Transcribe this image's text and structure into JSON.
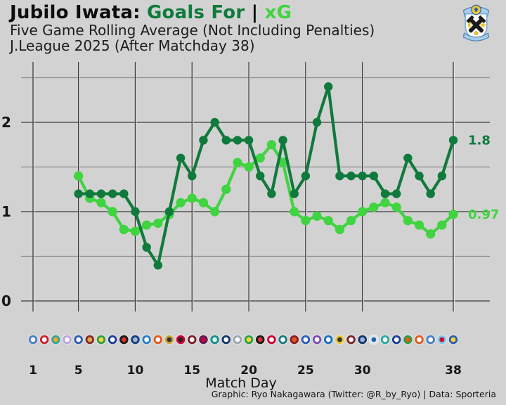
{
  "header": {
    "title_team": "Jubilo Iwata:",
    "title_goals": "Goals For",
    "title_sep": "|",
    "title_xg": "xG",
    "subtitle1": "Five Game Rolling Average (Not Including Penalties)",
    "subtitle2": "J.League 2025 (After Matchday 38)"
  },
  "footer": {
    "axis_title": "Match Day",
    "caption": "Graphic: Ryo Nakagawara (Twitter: @R_by_Ryo) | Data: Sporteria"
  },
  "colors": {
    "background": "#d2d2d2",
    "goals_green": "#0f7a3c",
    "xg_green": "#3fd440",
    "grid_dark": "#3c3c3c",
    "grid_light": "#8c8c8c",
    "text": "#141414"
  },
  "chart_data": {
    "type": "line",
    "title": "Jubilo Iwata: Goals For | xG (Five Game Rolling Average, Not Including Penalties)",
    "xlabel": "Match Day",
    "ylabel": "",
    "xlim": [
      1,
      38
    ],
    "ylim": [
      -0.15,
      2.65
    ],
    "grid": true,
    "x_ticks": [
      1,
      5,
      10,
      15,
      20,
      25,
      30,
      38
    ],
    "y_ticks": [
      0,
      1,
      2
    ],
    "h_gridlines": [
      0,
      0.5,
      1,
      1.5,
      2,
      2.5
    ],
    "x": [
      5,
      6,
      7,
      8,
      9,
      10,
      11,
      12,
      13,
      14,
      15,
      16,
      17,
      18,
      19,
      20,
      21,
      22,
      23,
      24,
      25,
      26,
      27,
      28,
      29,
      30,
      31,
      32,
      33,
      34,
      35,
      36,
      37,
      38
    ],
    "series": [
      {
        "name": "xG",
        "color": "#3fd440",
        "end_label": "0.97",
        "values": [
          1.4,
          1.15,
          1.1,
          1.0,
          0.8,
          0.78,
          0.85,
          0.87,
          0.97,
          1.1,
          1.15,
          1.1,
          1.0,
          1.25,
          1.55,
          1.5,
          1.6,
          1.75,
          1.55,
          1.0,
          0.9,
          0.95,
          0.9,
          0.8,
          0.9,
          1.0,
          1.05,
          1.1,
          1.05,
          0.9,
          0.85,
          0.75,
          0.85,
          0.97
        ]
      },
      {
        "name": "Goals For",
        "color": "#0f7a3c",
        "end_label": "1.8",
        "values": [
          1.2,
          1.2,
          1.2,
          1.2,
          1.2,
          1.0,
          0.6,
          0.4,
          1.0,
          1.6,
          1.4,
          1.8,
          2.0,
          1.8,
          1.8,
          1.8,
          1.4,
          1.2,
          1.8,
          1.2,
          1.4,
          2.0,
          2.4,
          1.4,
          1.4,
          1.4,
          1.4,
          1.2,
          1.2,
          1.6,
          1.4,
          1.2,
          1.4,
          1.8
        ]
      }
    ],
    "legend_position": "none"
  },
  "logos": [
    [
      "#4a7fc1",
      "#ffffff"
    ],
    [
      "#cc2233",
      "#ffffff"
    ],
    [
      "#2aa7a0",
      "#f4a427"
    ],
    [
      "#b9a6d8",
      "#ffffff"
    ],
    [
      "#2b5fb0",
      "#ffffff"
    ],
    [
      "#8a2a2a",
      "#d8b04a"
    ],
    [
      "#2f9e44",
      "#ffd43b"
    ],
    [
      "#1c3f94",
      "#ffffff"
    ],
    [
      "#1a1a1a",
      "#dd3333"
    ],
    [
      "#16407c",
      "#9db9d8"
    ],
    [
      "#2a7fc1",
      "#ffffff"
    ],
    [
      "#e05a1e",
      "#ffffff"
    ],
    [
      "#caa53d",
      "#333333"
    ],
    [
      "#cc0033",
      "#222222"
    ],
    [
      "#7a1f2b",
      "#ffffff"
    ],
    [
      "#5a1f5a",
      "#cc0033"
    ],
    [
      "#1f8a8a",
      "#ccffee"
    ],
    [
      "#12356b",
      "#ffffff"
    ],
    [
      "#9aa5b1",
      "#ffffff"
    ],
    [
      "#2f9e44",
      "#ffd43b"
    ],
    [
      "#1a1a1a",
      "#dd3333"
    ],
    [
      "#cc0033",
      "#ffffff"
    ],
    [
      "#177b8a",
      "#ffffff"
    ],
    [
      "#8a1f2b",
      "#e05a1e"
    ],
    [
      "#2b5fb0",
      "#ffffff"
    ],
    [
      "#7a4fb0",
      "#ffffff"
    ],
    [
      "#1c6fc1",
      "#ffffff"
    ],
    [
      "#e8c73b",
      "#333333"
    ],
    [
      "#7a1f2b",
      "#ffffff"
    ],
    [
      "#12356b",
      "#9db9d8"
    ],
    [
      "#dfe8f2",
      "#2b5fb0"
    ],
    [
      "#2aa7a0",
      "#ffffff"
    ],
    [
      "#1c3f94",
      "#ffffff"
    ],
    [
      "#2f9e44",
      "#e05a1e"
    ],
    [
      "#e05a1e",
      "#ffffff"
    ],
    [
      "#4a7fc1",
      "#ffffff"
    ],
    [
      "#7ec8e3",
      "#cc0033"
    ],
    [
      "#2b5fb0",
      "#ffd43b"
    ]
  ]
}
